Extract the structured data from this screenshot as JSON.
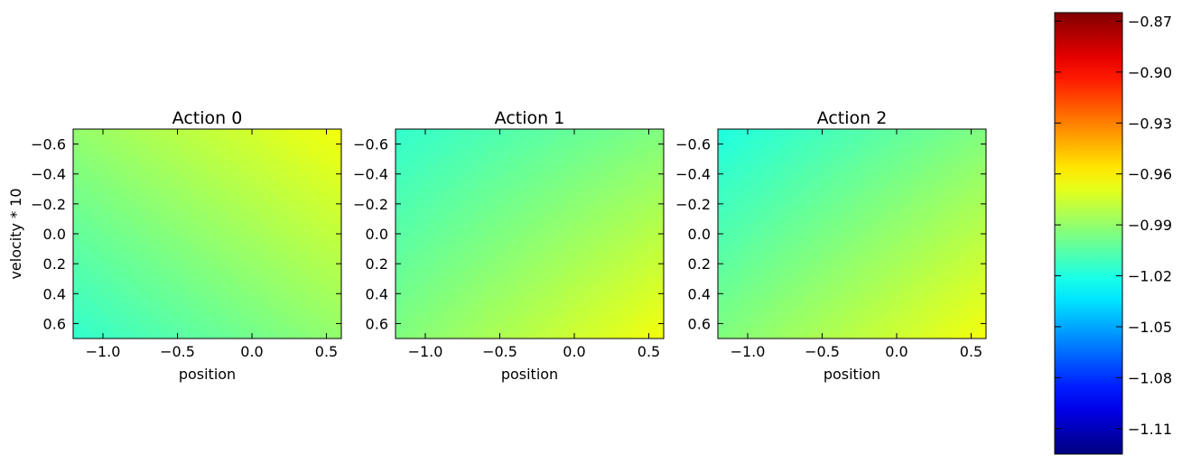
{
  "chart_data": [
    {
      "type": "heatmap",
      "title": "Action 0",
      "xlabel": "position",
      "ylabel": "velocity * 10",
      "xlim": [
        -1.2,
        0.6
      ],
      "ylim": [
        0.7,
        -0.7
      ],
      "xticks": [
        "−1.0",
        "−0.5",
        "0.0",
        "0.5"
      ],
      "yticks": [
        "−0.6",
        "−0.4",
        "−0.2",
        "0.0",
        "0.2",
        "0.4",
        "0.6"
      ],
      "corner_values": {
        "top_left": -0.99,
        "top_right": -0.965,
        "bottom_left": -1.015,
        "bottom_right": -0.99
      }
    },
    {
      "type": "heatmap",
      "title": "Action 1",
      "xlabel": "position",
      "ylabel": "",
      "xlim": [
        -1.2,
        0.6
      ],
      "ylim": [
        0.7,
        -0.7
      ],
      "xticks": [
        "−1.0",
        "−0.5",
        "0.0",
        "0.5"
      ],
      "yticks": [
        "−0.6",
        "−0.4",
        "−0.2",
        "0.0",
        "0.2",
        "0.4",
        "0.6"
      ],
      "corner_values": {
        "top_left": -1.015,
        "top_right": -0.995,
        "bottom_left": -0.995,
        "bottom_right": -0.965
      }
    },
    {
      "type": "heatmap",
      "title": "Action 2",
      "xlabel": "position",
      "ylabel": "",
      "xlim": [
        -1.2,
        0.6
      ],
      "ylim": [
        0.7,
        -0.7
      ],
      "xticks": [
        "−1.0",
        "−0.5",
        "0.0",
        "0.5"
      ],
      "yticks": [
        "−0.6",
        "−0.4",
        "−0.2",
        "0.0",
        "0.2",
        "0.4",
        "0.6"
      ],
      "corner_values": {
        "top_left": -1.02,
        "top_right": -0.995,
        "bottom_left": -0.995,
        "bottom_right": -0.965
      }
    }
  ],
  "colorbar": {
    "colormap": "jet",
    "vmin": -1.125,
    "vmax": -0.865,
    "ticks": [
      -0.87,
      -0.9,
      -0.93,
      -0.96,
      -0.99,
      -1.02,
      -1.05,
      -1.08,
      -1.11
    ],
    "tick_labels": [
      "−0.87",
      "−0.90",
      "−0.93",
      "−0.96",
      "−0.99",
      "−1.02",
      "−1.05",
      "−1.08",
      "−1.11"
    ]
  }
}
